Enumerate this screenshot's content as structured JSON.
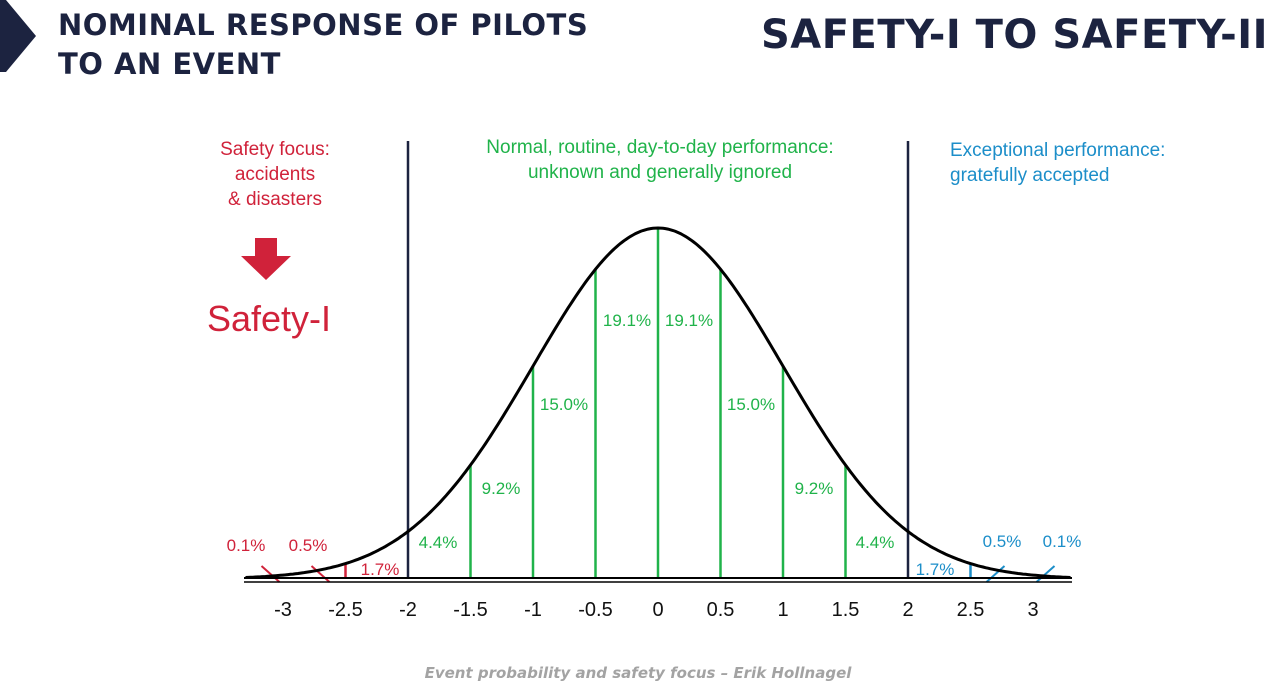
{
  "header": {
    "title_left": [
      "NOMINAL RESPONSE OF PILOTS",
      "TO AN EVENT"
    ],
    "title_right": "SAFETY-I TO SAFETY-II"
  },
  "regions": {
    "left": [
      "Safety focus:",
      "accidents",
      "& disasters"
    ],
    "center": [
      "Normal, routine, day-to-day performance:",
      "unknown and generally ignored"
    ],
    "right": [
      "Exceptional performance:",
      "gratefully accepted"
    ],
    "safety_label": "Safety-I"
  },
  "caption": "Event probability and safety focus – Erik Hollnagel",
  "colors": {
    "dark": "#1c2340",
    "red": "#d0223a",
    "green": "#20b34a",
    "blue": "#1c8ec9",
    "caption": "#a3a3a3"
  },
  "chart_data": {
    "type": "area",
    "curve": "normal distribution",
    "xlim": [
      -3.3,
      3.3
    ],
    "x_ticks": [
      "-3",
      "-2.5",
      "-2",
      "-1.5",
      "-1",
      "-0.5",
      "0",
      "0.5",
      "1",
      "1.5",
      "2",
      "2.5",
      "3"
    ],
    "region_boundaries": [
      -2,
      2
    ],
    "segments": [
      {
        "label": "0.1%",
        "from": -3.5,
        "to": -3.0,
        "color": "red"
      },
      {
        "label": "0.5%",
        "from": -3.0,
        "to": -2.5,
        "color": "red"
      },
      {
        "label": "1.7%",
        "from": -2.5,
        "to": -2.0,
        "color": "red"
      },
      {
        "label": "4.4%",
        "from": -2.0,
        "to": -1.5,
        "color": "green"
      },
      {
        "label": "9.2%",
        "from": -1.5,
        "to": -1.0,
        "color": "green"
      },
      {
        "label": "15.0%",
        "from": -1.0,
        "to": -0.5,
        "color": "green"
      },
      {
        "label": "19.1%",
        "from": -0.5,
        "to": 0.0,
        "color": "green"
      },
      {
        "label": "19.1%",
        "from": 0.0,
        "to": 0.5,
        "color": "green"
      },
      {
        "label": "15.0%",
        "from": 0.5,
        "to": 1.0,
        "color": "green"
      },
      {
        "label": "9.2%",
        "from": 1.0,
        "to": 1.5,
        "color": "green"
      },
      {
        "label": "4.4%",
        "from": 1.5,
        "to": 2.0,
        "color": "green"
      },
      {
        "label": "1.7%",
        "from": 2.0,
        "to": 2.5,
        "color": "blue"
      },
      {
        "label": "0.5%",
        "from": 2.5,
        "to": 3.0,
        "color": "blue"
      },
      {
        "label": "0.1%",
        "from": 3.0,
        "to": 3.5,
        "color": "blue"
      }
    ]
  }
}
